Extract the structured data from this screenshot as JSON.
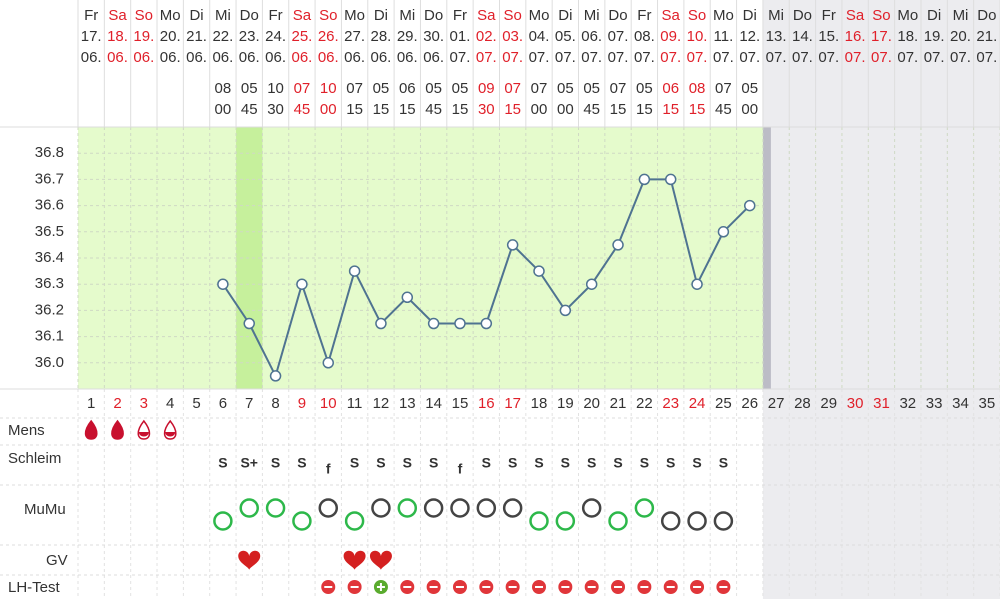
{
  "chart_data": {
    "type": "line",
    "categories": [
      1,
      2,
      3,
      4,
      5,
      6,
      7,
      8,
      9,
      10,
      11,
      12,
      13,
      14,
      15,
      16,
      17,
      18,
      19,
      20,
      21,
      22,
      23,
      24,
      25,
      26,
      27,
      28,
      29,
      30,
      31,
      32,
      33,
      34,
      35
    ],
    "weekdays": [
      "Fr",
      "Sa",
      "So",
      "Mo",
      "Di",
      "Mi",
      "Do",
      "Fr",
      "Sa",
      "So",
      "Mo",
      "Di",
      "Mi",
      "Do",
      "Fr",
      "Sa",
      "So",
      "Mo",
      "Di",
      "Mi",
      "Do",
      "Fr",
      "Sa",
      "So",
      "Mo",
      "Di",
      "Mi",
      "Do",
      "Fr",
      "Sa",
      "So",
      "Mo",
      "Di",
      "Mi",
      "Do"
    ],
    "dates": [
      "17.",
      "18.",
      "19.",
      "20.",
      "21.",
      "22.",
      "23.",
      "24.",
      "25.",
      "26.",
      "27.",
      "28.",
      "29.",
      "30.",
      "01.",
      "02.",
      "03.",
      "04.",
      "05.",
      "06.",
      "07.",
      "08.",
      "09.",
      "10.",
      "11.",
      "12.",
      "13.",
      "14.",
      "15.",
      "16.",
      "17.",
      "18.",
      "19.",
      "20.",
      "21."
    ],
    "months": [
      "06.",
      "06.",
      "06.",
      "06.",
      "06.",
      "06.",
      "06.",
      "06.",
      "06.",
      "06.",
      "06.",
      "06.",
      "06.",
      "06.",
      "07.",
      "07.",
      "07.",
      "07.",
      "07.",
      "07.",
      "07.",
      "07.",
      "07.",
      "07.",
      "07.",
      "07.",
      "07.",
      "07.",
      "07.",
      "07.",
      "07.",
      "07.",
      "07.",
      "07.",
      "07."
    ],
    "weekend": [
      false,
      true,
      true,
      false,
      false,
      false,
      false,
      false,
      true,
      true,
      false,
      false,
      false,
      false,
      false,
      true,
      true,
      false,
      false,
      false,
      false,
      false,
      true,
      true,
      false,
      false,
      false,
      false,
      false,
      true,
      true,
      false,
      false,
      false,
      false
    ],
    "future": [
      false,
      false,
      false,
      false,
      false,
      false,
      false,
      false,
      false,
      false,
      false,
      false,
      false,
      false,
      false,
      false,
      false,
      false,
      false,
      false,
      false,
      false,
      false,
      false,
      false,
      false,
      true,
      true,
      true,
      true,
      true,
      true,
      true,
      true,
      true
    ],
    "chart_highlight": [
      false,
      false,
      false,
      false,
      false,
      false,
      true,
      false,
      false,
      false,
      false,
      false,
      false,
      false,
      false,
      false,
      false,
      false,
      false,
      false,
      false,
      false,
      false,
      false,
      false,
      false,
      false,
      false,
      false,
      false,
      false,
      false,
      false,
      false,
      false
    ],
    "time_hours": [
      null,
      null,
      null,
      null,
      null,
      "08",
      "05",
      "10",
      "07",
      "10",
      "07",
      "05",
      "06",
      "05",
      "05",
      "09",
      "07",
      "07",
      "05",
      "05",
      "07",
      "05",
      "06",
      "08",
      "07",
      "05",
      null,
      null,
      null,
      null,
      null,
      null,
      null,
      null,
      null
    ],
    "time_minutes": [
      null,
      null,
      null,
      null,
      null,
      "00",
      "45",
      "30",
      "45",
      "00",
      "15",
      "15",
      "15",
      "45",
      "15",
      "30",
      "15",
      "00",
      "00",
      "45",
      "15",
      "15",
      "15",
      "15",
      "45",
      "00",
      null,
      null,
      null,
      null,
      null,
      null,
      null,
      null,
      null
    ],
    "series": [
      {
        "color": "#4f7391",
        "values": [
          null,
          null,
          null,
          null,
          null,
          36.3,
          36.15,
          35.95,
          36.3,
          36.0,
          36.35,
          36.15,
          36.25,
          36.15,
          36.15,
          36.15,
          36.45,
          36.35,
          36.2,
          36.3,
          36.45,
          36.7,
          36.7,
          36.3,
          36.5,
          36.6,
          null,
          null,
          null,
          null,
          null,
          null,
          null,
          null,
          null
        ]
      }
    ],
    "ylim": [
      35.9,
      36.9
    ],
    "yticks": [
      {
        "value": 36,
        "label": "36.0"
      },
      36.1,
      36.2,
      36.3,
      36.4,
      36.5,
      36.6,
      36.7,
      36.8
    ],
    "grid": true,
    "rows": {
      "labels": [
        "Mens",
        "Schleim",
        "MuMu",
        "GV",
        "LH-Test"
      ],
      "mens": [
        "heavy",
        "heavy",
        "medium",
        "medium",
        null,
        null,
        null,
        null,
        null,
        null,
        null,
        null,
        null,
        null,
        null,
        null,
        null,
        null,
        null,
        null,
        null,
        null,
        null,
        null,
        null,
        null,
        null,
        null,
        null,
        null,
        null,
        null,
        null,
        null,
        null
      ],
      "schleim": [
        null,
        null,
        null,
        null,
        null,
        "S",
        "S+",
        "S",
        "S",
        "f",
        "S",
        "S",
        "S",
        "S",
        "f",
        "S",
        "S",
        "S",
        "S",
        "S",
        "S",
        "S",
        "S",
        "S",
        "S",
        null,
        null,
        null,
        null,
        null,
        null,
        null,
        null,
        null,
        null
      ],
      "mumu": [
        null,
        null,
        null,
        null,
        null,
        {
          "level": "low",
          "color": "#2db84a"
        },
        {
          "level": "high",
          "color": "#2db84a"
        },
        {
          "level": "high",
          "color": "#2db84a"
        },
        {
          "level": "low",
          "color": "#2db84a"
        },
        {
          "level": "high",
          "color": "#444444"
        },
        {
          "level": "low",
          "color": "#2db84a"
        },
        {
          "level": "high",
          "color": "#444444"
        },
        {
          "level": "high",
          "color": "#2db84a"
        },
        {
          "level": "high",
          "color": "#444444"
        },
        {
          "level": "high",
          "color": "#444444"
        },
        {
          "level": "high",
          "color": "#444444"
        },
        {
          "level": "high",
          "color": "#444444"
        },
        {
          "level": "low",
          "color": "#2db84a"
        },
        {
          "level": "low",
          "color": "#2db84a"
        },
        {
          "level": "high",
          "color": "#444444"
        },
        {
          "level": "low",
          "color": "#2db84a"
        },
        {
          "level": "high",
          "color": "#2db84a"
        },
        {
          "level": "low",
          "color": "#444444"
        },
        {
          "level": "low",
          "color": "#444444"
        },
        {
          "level": "low",
          "color": "#444444"
        },
        null,
        null,
        null,
        null,
        null,
        null,
        null,
        null,
        null,
        null
      ],
      "gv": [
        false,
        false,
        false,
        false,
        false,
        false,
        true,
        false,
        false,
        false,
        true,
        true,
        false,
        false,
        false,
        false,
        false,
        false,
        false,
        false,
        false,
        false,
        false,
        false,
        false,
        false,
        false,
        false,
        false,
        false,
        false,
        false,
        false,
        false,
        false
      ],
      "lh": [
        null,
        null,
        null,
        null,
        null,
        null,
        null,
        null,
        null,
        "neg",
        "neg",
        "pos",
        "neg",
        "neg",
        "neg",
        "neg",
        "neg",
        "neg",
        "neg",
        "neg",
        "neg",
        "neg",
        "neg",
        "neg",
        "neg",
        null,
        null,
        null,
        null,
        null,
        null,
        null,
        null,
        null,
        null
      ]
    }
  }
}
